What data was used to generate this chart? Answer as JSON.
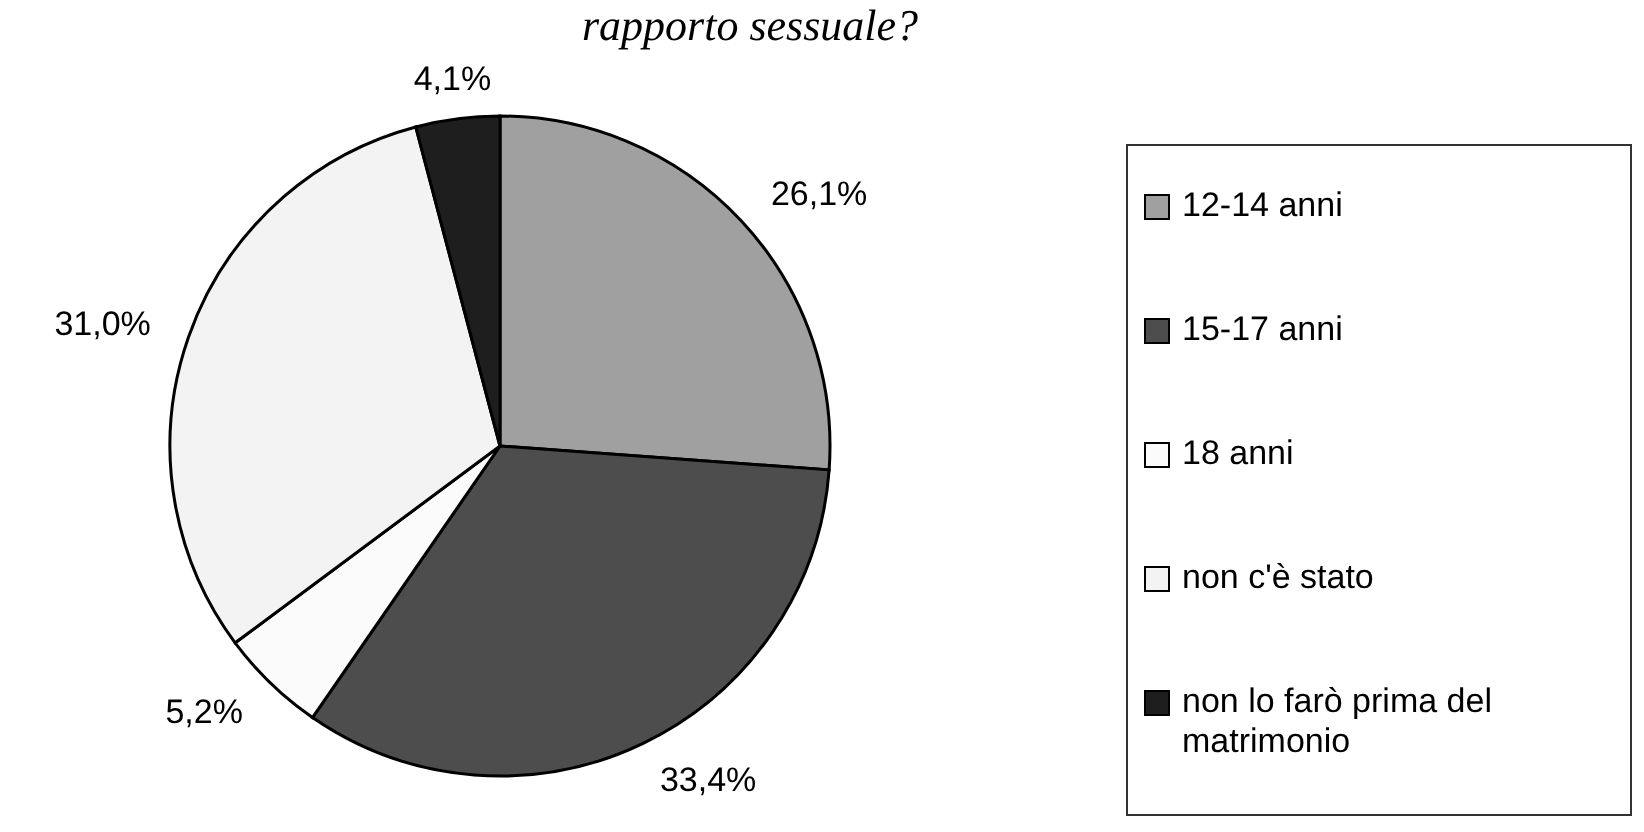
{
  "chart_data": {
    "type": "pie",
    "title": "rapporto sessuale?",
    "categories": [
      "12-14 anni",
      "15-17 anni",
      "18 anni",
      "non c'è stato",
      "non lo farò prima del matrimonio"
    ],
    "values": [
      26.1,
      33.4,
      5.2,
      31.0,
      4.1
    ],
    "colors": [
      "#a0a0a0",
      "#4d4d4d",
      "#fbfbfb",
      "#f3f3f3",
      "#1e1e1e"
    ],
    "value_labels": [
      "26,1%",
      "33,4%",
      "5,2%",
      "31,0%",
      "4,1%"
    ],
    "legend": "right"
  }
}
